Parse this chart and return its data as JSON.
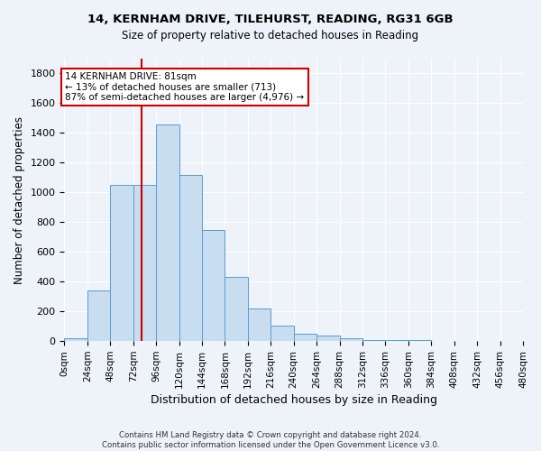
{
  "title_line1": "14, KERNHAM DRIVE, TILEHURST, READING, RG31 6GB",
  "title_line2": "Size of property relative to detached houses in Reading",
  "xlabel": "Distribution of detached houses by size in Reading",
  "ylabel": "Number of detached properties",
  "bar_color": "#c9ddf0",
  "bar_edge_color": "#5b9bd5",
  "bin_labels": [
    "0sqm",
    "24sqm",
    "48sqm",
    "72sqm",
    "96sqm",
    "120sqm",
    "144sqm",
    "168sqm",
    "192sqm",
    "216sqm",
    "240sqm",
    "264sqm",
    "288sqm",
    "312sqm",
    "336sqm",
    "360sqm",
    "384sqm",
    "408sqm",
    "432sqm",
    "456sqm",
    "480sqm"
  ],
  "bar_heights": [
    20,
    340,
    1050,
    1050,
    1460,
    1120,
    750,
    430,
    220,
    105,
    50,
    35,
    20,
    10,
    5,
    5,
    3,
    3,
    2,
    1,
    0
  ],
  "vline_x": 81,
  "annotation_title": "14 KERNHAM DRIVE: 81sqm",
  "annotation_line2": "← 13% of detached houses are smaller (713)",
  "annotation_line3": "87% of semi-detached houses are larger (4,976) →",
  "ylim": [
    0,
    1900
  ],
  "yticks": [
    0,
    200,
    400,
    600,
    800,
    1000,
    1200,
    1400,
    1600,
    1800
  ],
  "footer_line1": "Contains HM Land Registry data © Crown copyright and database right 2024.",
  "footer_line2": "Contains public sector information licensed under the Open Government Licence v3.0.",
  "background_color": "#eef2f9",
  "grid_color": "#ffffff",
  "annotation_box_color": "#ffffff",
  "annotation_box_edge": "#cc0000",
  "vline_color": "#cc0000"
}
